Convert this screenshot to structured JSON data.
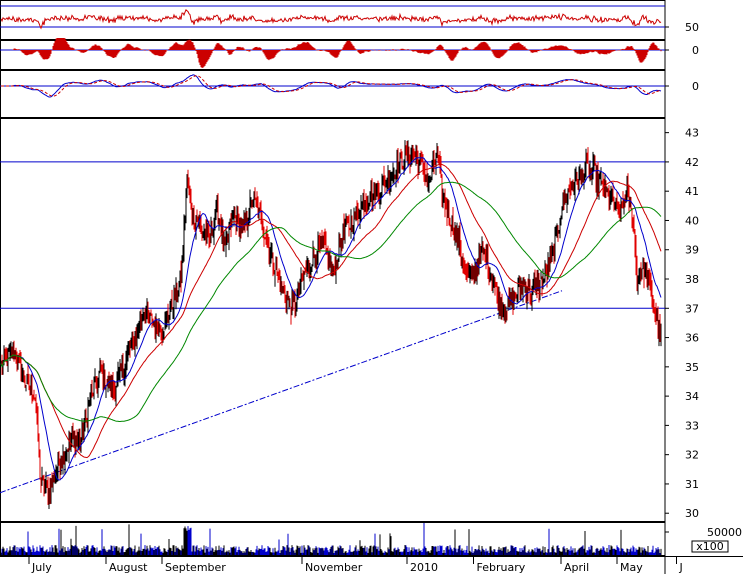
{
  "chart_data": {
    "type": "candlestick",
    "colors": {
      "up": "#000000",
      "down": "#e00000",
      "ma_short": "#0000cc",
      "ma_mid": "#cc0000",
      "ma_long": "#008800",
      "level": "#0000cc",
      "trendline": "#0000cc",
      "oscillator": "#cc0000"
    },
    "price_axis": {
      "range": [
        29.7,
        43.5
      ],
      "ticks": [
        "30",
        "31",
        "32",
        "33",
        "34",
        "35",
        "36",
        "37",
        "38",
        "39",
        "40",
        "41",
        "42",
        "43"
      ]
    },
    "levels": [
      42,
      37
    ],
    "months": [
      "July",
      "August",
      "September",
      "November",
      "2010",
      "February",
      "April",
      "May",
      "J"
    ],
    "month_positions": [
      0.03,
      0.14,
      0.22,
      0.42,
      0.57,
      0.665,
      0.79,
      0.87,
      0.955
    ],
    "indicator_panels": [
      {
        "name": "rsi",
        "ticks": [
          "50"
        ],
        "levels": [
          50
        ]
      },
      {
        "name": "macd_histogram",
        "ticks": [
          "0"
        ],
        "levels": [
          0
        ]
      },
      {
        "name": "macd",
        "ticks": [
          "0"
        ],
        "levels": [
          0
        ]
      }
    ],
    "volume_axis": {
      "ticks": [
        "50000"
      ],
      "unit": "x100"
    },
    "anchors": [
      [
        0,
        35.0
      ],
      [
        12,
        35.6
      ],
      [
        24,
        34.5
      ],
      [
        34,
        34.0
      ],
      [
        40,
        31.0
      ],
      [
        48,
        30.8
      ],
      [
        58,
        31.7
      ],
      [
        70,
        32.5
      ],
      [
        80,
        32.5
      ],
      [
        90,
        34.0
      ],
      [
        100,
        34.8
      ],
      [
        112,
        34.2
      ],
      [
        122,
        35.0
      ],
      [
        132,
        35.8
      ],
      [
        142,
        36.9
      ],
      [
        152,
        36.5
      ],
      [
        162,
        36.3
      ],
      [
        172,
        37.2
      ],
      [
        180,
        38.0
      ],
      [
        186,
        41.3
      ],
      [
        192,
        40.2
      ],
      [
        200,
        39.8
      ],
      [
        208,
        39.3
      ],
      [
        216,
        40.5
      ],
      [
        224,
        39.0
      ],
      [
        232,
        40.2
      ],
      [
        242,
        39.6
      ],
      [
        252,
        40.8
      ],
      [
        262,
        39.8
      ],
      [
        272,
        38.6
      ],
      [
        282,
        37.5
      ],
      [
        292,
        37.0
      ],
      [
        302,
        38.0
      ],
      [
        312,
        38.8
      ],
      [
        322,
        39.2
      ],
      [
        332,
        38.2
      ],
      [
        342,
        39.6
      ],
      [
        352,
        40.0
      ],
      [
        362,
        40.6
      ],
      [
        372,
        40.9
      ],
      [
        382,
        41.2
      ],
      [
        392,
        41.7
      ],
      [
        402,
        42.1
      ],
      [
        412,
        42.3
      ],
      [
        420,
        41.9
      ],
      [
        428,
        41.3
      ],
      [
        436,
        42.3
      ],
      [
        442,
        40.8
      ],
      [
        450,
        40.0
      ],
      [
        458,
        39.3
      ],
      [
        466,
        38.0
      ],
      [
        474,
        38.3
      ],
      [
        482,
        39.0
      ],
      [
        490,
        38.2
      ],
      [
        498,
        37.2
      ],
      [
        506,
        37.0
      ],
      [
        514,
        37.4
      ],
      [
        522,
        37.8
      ],
      [
        530,
        37.6
      ],
      [
        538,
        37.8
      ],
      [
        546,
        38.2
      ],
      [
        554,
        39.2
      ],
      [
        562,
        40.6
      ],
      [
        570,
        41.2
      ],
      [
        578,
        41.5
      ],
      [
        586,
        41.8
      ],
      [
        594,
        41.6
      ],
      [
        602,
        41.1
      ],
      [
        610,
        40.8
      ],
      [
        618,
        40.2
      ],
      [
        626,
        41.0
      ],
      [
        632,
        40.0
      ],
      [
        636,
        38.0
      ],
      [
        642,
        38.4
      ],
      [
        648,
        37.8
      ],
      [
        654,
        36.9
      ],
      [
        660,
        35.9
      ]
    ]
  }
}
